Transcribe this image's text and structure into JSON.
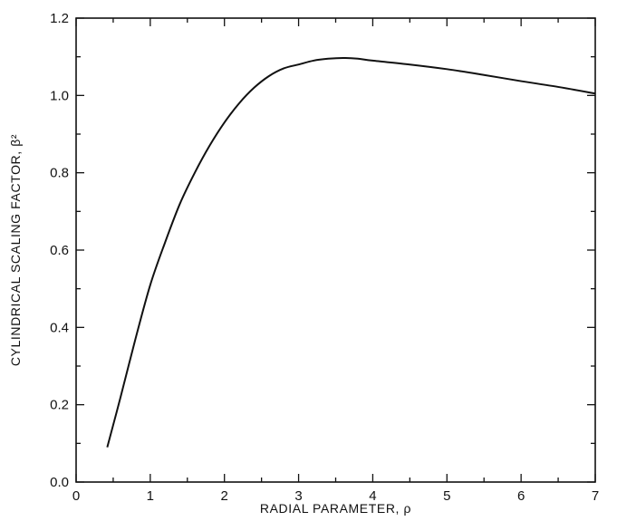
{
  "chart_data": {
    "type": "line",
    "title": "",
    "xlabel": "RADIAL PARAMETER, ρ",
    "ylabel": "CYLINDRICAL SCALING FACTOR, β²",
    "xlim": [
      0,
      7
    ],
    "ylim": [
      0.0,
      1.2
    ],
    "xticks": [
      "0",
      "1",
      "2",
      "3",
      "4",
      "5",
      "6",
      "7"
    ],
    "yticks": [
      "0.0",
      "0.2",
      "0.4",
      "0.6",
      "0.8",
      "1.0",
      "1.2"
    ],
    "grid": false,
    "legend": "none",
    "line_color": "#111111",
    "series": [
      {
        "x": [
          0.42,
          0.6,
          0.8,
          1.0,
          1.2,
          1.4,
          1.6,
          1.8,
          2.0,
          2.2,
          2.4,
          2.6,
          2.8,
          3.0,
          3.2,
          3.4,
          3.6,
          3.8,
          4.0,
          4.5,
          5.0,
          5.5,
          6.0,
          6.5,
          7.0
        ],
        "y": [
          0.09,
          0.22,
          0.37,
          0.51,
          0.62,
          0.72,
          0.8,
          0.87,
          0.93,
          0.98,
          1.02,
          1.05,
          1.07,
          1.08,
          1.09,
          1.095,
          1.097,
          1.095,
          1.09,
          1.08,
          1.068,
          1.053,
          1.037,
          1.022,
          1.005
        ]
      }
    ]
  }
}
